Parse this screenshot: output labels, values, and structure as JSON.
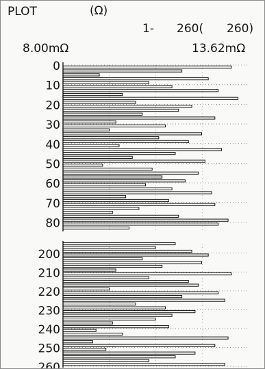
{
  "header": {
    "mode": "PLOT",
    "unit": "(Ω)",
    "range_start": "1-",
    "range_end": "260(",
    "range_count": "260)",
    "min_label": "8.00mΩ",
    "max_label": "13.62mΩ"
  },
  "colors": {
    "ink": "#151515",
    "grid": "#7a7a7a",
    "background": "#f9f9f7"
  },
  "chart_data": {
    "type": "bar",
    "orientation": "horizontal",
    "x_range": [
      8.0,
      13.62
    ],
    "x_unit": "mΩ",
    "grid": "dotted",
    "tick_labels": [
      "0",
      "10",
      "20",
      "30",
      "40",
      "50",
      "60",
      "70",
      "80",
      "200",
      "210",
      "220",
      "230",
      "240",
      "250",
      "260"
    ],
    "categories": [
      1,
      3,
      5,
      7,
      9,
      11,
      13,
      15,
      17,
      19,
      21,
      23,
      25,
      27,
      29,
      31,
      33,
      35,
      37,
      39,
      41,
      43,
      45,
      47,
      49,
      51,
      53,
      55,
      57,
      59,
      61,
      63,
      65,
      67,
      69,
      71,
      73,
      75,
      77,
      79,
      81,
      83,
      195,
      197,
      199,
      201,
      203,
      205,
      207,
      209,
      211,
      213,
      215,
      217,
      219,
      221,
      223,
      225,
      227,
      229,
      231,
      233,
      235,
      237,
      239,
      241,
      243,
      245,
      247,
      249,
      251,
      253,
      255,
      257,
      259
    ],
    "values": [
      13.1,
      11.6,
      9.1,
      12.4,
      10.6,
      11.3,
      12.7,
      9.8,
      13.3,
      10.2,
      11.9,
      11.5,
      10.4,
      12.6,
      9.6,
      11.1,
      9.4,
      12.2,
      10.9,
      11.8,
      9.7,
      12.8,
      11.4,
      10.1,
      12.3,
      9.2,
      10.7,
      12.1,
      11.0,
      11.7,
      10.5,
      11.3,
      12.5,
      9.9,
      11.2,
      12.6,
      10.3,
      9.5,
      11.5,
      13.0,
      12.7,
      10.0,
      11.4,
      10.8,
      11.9,
      12.4,
      10.4,
      12.2,
      11.0,
      9.6,
      13.1,
      10.6,
      11.8,
      12.1,
      9.4,
      12.7,
      11.6,
      12.9,
      10.2,
      11.1,
      12.0,
      11.3,
      10.8,
      9.5,
      11.2,
      9.0,
      9.8,
      13.0,
      8.9,
      12.6,
      9.3,
      12.0,
      11.4,
      10.6,
      12.9
    ]
  }
}
